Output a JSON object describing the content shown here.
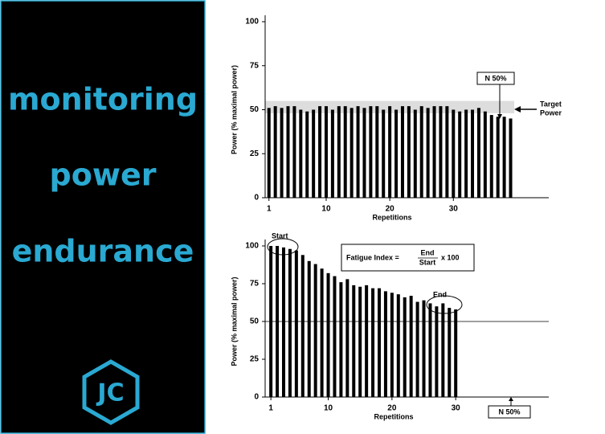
{
  "sidebar": {
    "lines": [
      "monitoring",
      "power",
      "endurance"
    ],
    "logo": "JC"
  },
  "chart_data": [
    {
      "type": "bar",
      "ylabel": "Power (% maximal power)",
      "xlabel": "Repetitions",
      "x": [
        1,
        2,
        3,
        4,
        5,
        6,
        7,
        8,
        9,
        10,
        11,
        12,
        13,
        14,
        15,
        16,
        17,
        18,
        19,
        20,
        21,
        22,
        23,
        24,
        25,
        26,
        27,
        28,
        29,
        30,
        31,
        32,
        33,
        34,
        35,
        36,
        37,
        38,
        39
      ],
      "values": [
        51,
        52,
        51,
        52,
        52,
        50,
        49,
        50,
        52,
        52,
        50,
        52,
        52,
        51,
        52,
        51,
        52,
        52,
        50,
        52,
        50,
        52,
        52,
        50,
        52,
        51,
        52,
        52,
        52,
        50,
        49,
        50,
        50,
        51,
        49,
        47,
        46,
        46,
        45
      ],
      "color": "#000000",
      "xlim": [
        0.4,
        45
      ],
      "ylim": [
        0,
        100
      ],
      "xticks": [
        1,
        10,
        20,
        30
      ],
      "yticks": [
        0,
        25,
        50,
        75,
        100
      ],
      "target_band": [
        48,
        55
      ],
      "annotations": {
        "marker": "N 50%",
        "target": [
          "Target",
          "Power"
        ]
      }
    },
    {
      "type": "bar",
      "ylabel": "Power (% maximal power)",
      "xlabel": "Repetitions",
      "x": [
        1,
        2,
        3,
        4,
        5,
        6,
        7,
        8,
        9,
        10,
        11,
        12,
        13,
        14,
        15,
        16,
        17,
        18,
        19,
        20,
        21,
        22,
        23,
        24,
        25,
        26,
        27,
        28,
        29,
        30
      ],
      "values": [
        100,
        100,
        99,
        98,
        97,
        94,
        90,
        88,
        85,
        82,
        80,
        76,
        78,
        74,
        73,
        74,
        72,
        72,
        70,
        69,
        68,
        66,
        67,
        63,
        64,
        62,
        60,
        62,
        59,
        58
      ],
      "color": "#000000",
      "xlim": [
        0.1,
        44.6
      ],
      "ylim": [
        0,
        100
      ],
      "xticks": [
        1,
        10,
        20,
        30
      ],
      "yticks": [
        0,
        25,
        50,
        75,
        100
      ],
      "reference_line": 50,
      "annotations": {
        "start": "Start",
        "end": "End",
        "marker": "N 50%",
        "formula": {
          "label": "Fatigue Index =",
          "numerator": "End",
          "denominator": "Start",
          "factor": "x 100"
        }
      }
    }
  ]
}
